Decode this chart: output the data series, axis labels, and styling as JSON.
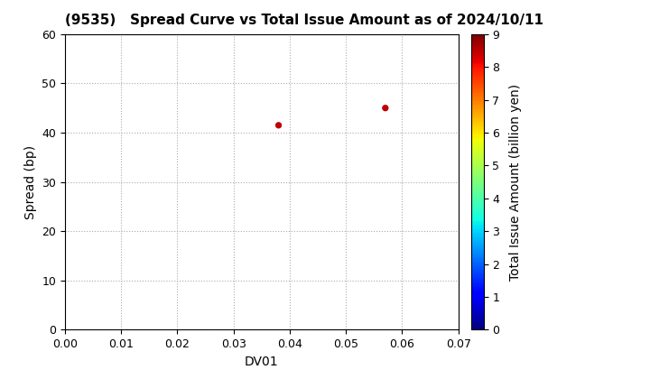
{
  "title": "(9535)   Spread Curve vs Total Issue Amount as of 2024/10/11",
  "xlabel": "DV01",
  "ylabel": "Spread (bp)",
  "colorbar_label": "Total Issue Amount (billion yen)",
  "xlim": [
    0.0,
    0.07
  ],
  "ylim": [
    0,
    60
  ],
  "xticks": [
    0.0,
    0.01,
    0.02,
    0.03,
    0.04,
    0.05,
    0.06,
    0.07
  ],
  "yticks": [
    0,
    10,
    20,
    30,
    40,
    50,
    60
  ],
  "colorbar_ticks": [
    0,
    1,
    2,
    3,
    4,
    5,
    6,
    7,
    8,
    9
  ],
  "clim": [
    0,
    9
  ],
  "scatter_x": [
    0.038,
    0.057
  ],
  "scatter_y": [
    41.5,
    45.0
  ],
  "scatter_colors": [
    8.5,
    8.5
  ],
  "scatter_size": 18,
  "background_color": "#ffffff",
  "grid_color": "#aaaaaa",
  "title_fontsize": 11,
  "axis_fontsize": 10,
  "tick_fontsize": 9,
  "colormap": "jet"
}
